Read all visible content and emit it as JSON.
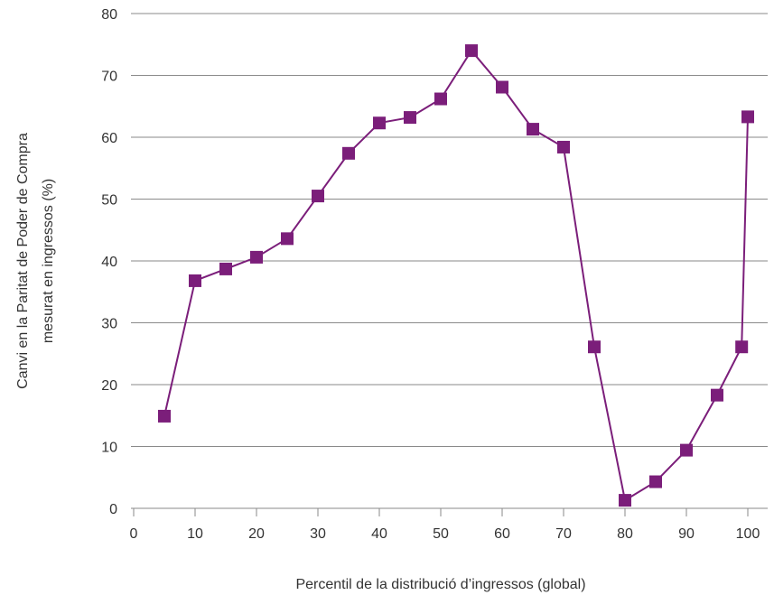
{
  "chart_data": {
    "type": "line",
    "xlabel": "Percentil de la distribució d’ingressos (global)",
    "ylabel_lines": [
      "Canvi en la Paritat de Poder de Compra",
      "mesurat en ingressos (%)"
    ],
    "xlim": [
      0,
      100
    ],
    "ylim": [
      0,
      80
    ],
    "xticks": [
      0,
      10,
      20,
      30,
      40,
      50,
      60,
      70,
      80,
      90,
      100
    ],
    "yticks": [
      0,
      10,
      20,
      30,
      40,
      50,
      60,
      70,
      80
    ],
    "grid": "horizontal",
    "series": [
      {
        "color": "#7b1e7a",
        "marker": "square",
        "points": [
          {
            "x": 5,
            "y": 14.9
          },
          {
            "x": 10,
            "y": 36.8
          },
          {
            "x": 15,
            "y": 38.7
          },
          {
            "x": 20,
            "y": 40.6
          },
          {
            "x": 25,
            "y": 43.6
          },
          {
            "x": 30,
            "y": 50.5
          },
          {
            "x": 35,
            "y": 57.4
          },
          {
            "x": 40,
            "y": 62.3
          },
          {
            "x": 45,
            "y": 63.2
          },
          {
            "x": 50,
            "y": 66.2
          },
          {
            "x": 55,
            "y": 74.0
          },
          {
            "x": 60,
            "y": 68.1
          },
          {
            "x": 65,
            "y": 61.3
          },
          {
            "x": 70,
            "y": 58.4
          },
          {
            "x": 75,
            "y": 26.1
          },
          {
            "x": 80,
            "y": 1.3
          },
          {
            "x": 85,
            "y": 4.3
          },
          {
            "x": 90,
            "y": 9.4
          },
          {
            "x": 95,
            "y": 18.3
          },
          {
            "x": 99,
            "y": 26.1
          },
          {
            "x": 100,
            "y": 63.3
          }
        ]
      }
    ]
  }
}
